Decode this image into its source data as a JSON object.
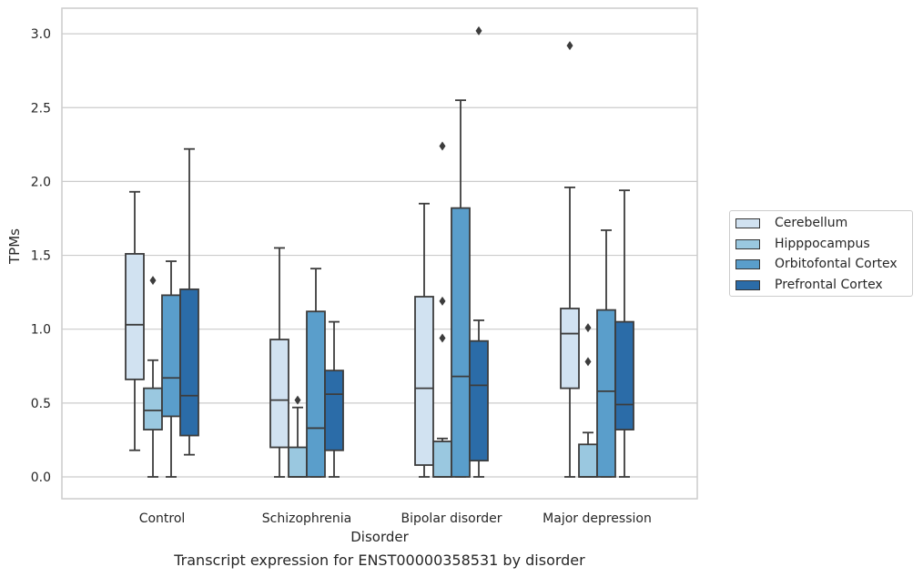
{
  "caption": "Transcript expression for ENST00000358531 by disorder",
  "chart_data": {
    "type": "boxplot",
    "xlabel": "Disorder",
    "ylabel": "TPMs",
    "ylim": [
      -0.15,
      3.2
    ],
    "yticks": [
      0.0,
      0.5,
      1.0,
      1.5,
      2.0,
      2.5,
      3.0
    ],
    "ytick_labels": [
      "0.0",
      "0.5",
      "1.0",
      "1.5",
      "2.0",
      "2.5",
      "3.0"
    ],
    "grid": "horizontal",
    "legend_position": "right",
    "categories": [
      "Control",
      "Schizophrenia",
      "Bipolar disorder",
      "Major depression"
    ],
    "series": [
      {
        "name": "Cerebellum",
        "color": "#d1e2f1",
        "boxes": [
          {
            "whislo": 0.18,
            "q1": 0.66,
            "med": 1.03,
            "q3": 1.51,
            "whishi": 1.93,
            "fliers": []
          },
          {
            "whislo": 0.0,
            "q1": 0.2,
            "med": 0.52,
            "q3": 0.93,
            "whishi": 1.55,
            "fliers": []
          },
          {
            "whislo": 0.0,
            "q1": 0.08,
            "med": 0.6,
            "q3": 1.22,
            "whishi": 1.85,
            "fliers": []
          },
          {
            "whislo": 0.0,
            "q1": 0.6,
            "med": 0.97,
            "q3": 1.14,
            "whishi": 1.96,
            "fliers": [
              2.92
            ]
          }
        ]
      },
      {
        "name": "Hipppocampus",
        "color": "#9ac8e0",
        "boxes": [
          {
            "whislo": 0.0,
            "q1": 0.32,
            "med": 0.45,
            "q3": 0.6,
            "whishi": 0.79,
            "fliers": [
              1.33
            ]
          },
          {
            "whislo": 0.0,
            "q1": 0.0,
            "med": 0.0,
            "q3": 0.2,
            "whishi": 0.47,
            "fliers": [
              0.52
            ]
          },
          {
            "whislo": 0.0,
            "q1": 0.0,
            "med": 0.0,
            "q3": 0.24,
            "whishi": 0.26,
            "fliers": [
              0.94,
              1.19,
              2.24
            ]
          },
          {
            "whislo": 0.0,
            "q1": 0.0,
            "med": 0.0,
            "q3": 0.22,
            "whishi": 0.3,
            "fliers": [
              0.78,
              1.01
            ]
          }
        ]
      },
      {
        "name": "Orbitofontal Cortex",
        "color": "#5a9ecb",
        "boxes": [
          {
            "whislo": 0.0,
            "q1": 0.41,
            "med": 0.67,
            "q3": 1.23,
            "whishi": 1.46,
            "fliers": []
          },
          {
            "whislo": 0.0,
            "q1": 0.0,
            "med": 0.33,
            "q3": 1.12,
            "whishi": 1.41,
            "fliers": []
          },
          {
            "whislo": 0.0,
            "q1": 0.0,
            "med": 0.68,
            "q3": 1.82,
            "whishi": 2.55,
            "fliers": []
          },
          {
            "whislo": 0.0,
            "q1": 0.0,
            "med": 0.58,
            "q3": 1.13,
            "whishi": 1.67,
            "fliers": []
          }
        ]
      },
      {
        "name": "Prefrontal Cortex",
        "color": "#2b6ca8",
        "boxes": [
          {
            "whislo": 0.15,
            "q1": 0.28,
            "med": 0.55,
            "q3": 1.27,
            "whishi": 2.22,
            "fliers": []
          },
          {
            "whislo": 0.0,
            "q1": 0.18,
            "med": 0.56,
            "q3": 0.72,
            "whishi": 1.05,
            "fliers": []
          },
          {
            "whislo": 0.0,
            "q1": 0.11,
            "med": 0.62,
            "q3": 0.92,
            "whishi": 1.06,
            "fliers": [
              3.02
            ]
          },
          {
            "whislo": 0.0,
            "q1": 0.32,
            "med": 0.49,
            "q3": 1.05,
            "whishi": 1.94,
            "fliers": []
          }
        ]
      }
    ]
  }
}
